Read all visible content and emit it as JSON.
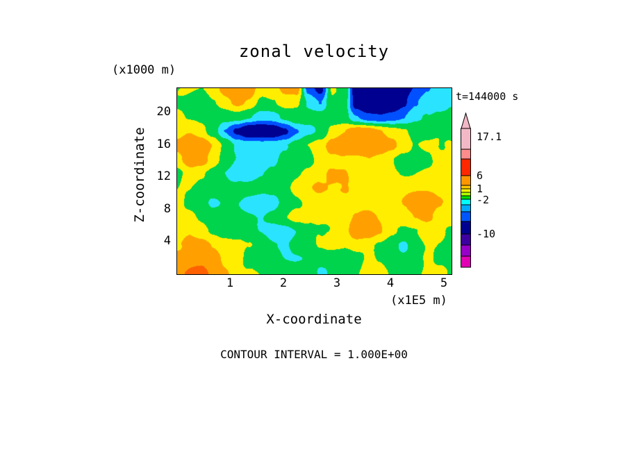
{
  "chart_data": {
    "type": "heatmap",
    "title": "zonal velocity",
    "time_label": "t=144000 s",
    "xlabel": "X-coordinate",
    "x_units": "(x1E5 m)",
    "ylabel": "Z-coordinate",
    "y_units": "(x1000 m)",
    "contour_note": "CONTOUR INTERVAL = 1.000E+00",
    "contour_interval": 1.0,
    "field_max": 17.1,
    "x_ticks": [
      1,
      2,
      3,
      4,
      5
    ],
    "y_ticks": [
      4,
      8,
      12,
      16,
      20
    ],
    "x_range": [
      0,
      5.13
    ],
    "z_range": [
      0,
      23
    ],
    "legend_position": "right",
    "color_bins": [
      {
        "max": -7,
        "color": "#000090"
      },
      {
        "max": -4,
        "color": "#0050ff"
      },
      {
        "max": -1.5,
        "color": "#2ae4ff"
      },
      {
        "max": 1.5,
        "color": "#00d44c"
      },
      {
        "max": 4,
        "color": "#ffee00"
      },
      {
        "max": 8,
        "color": "#ffa000"
      },
      {
        "max": 999,
        "color": "#ff6000"
      }
    ],
    "grid": {
      "description": "estimated zonal velocity values, rows top (z=23) to bottom (z=0), cols left (x=0) to right (x=5.13)",
      "values": [
        [
          1,
          1,
          1,
          3,
          5,
          7,
          5,
          2,
          3,
          5,
          5,
          -6,
          -9,
          2,
          1,
          -10,
          -12,
          -12,
          -11,
          -9,
          -7,
          -5,
          -3,
          -2
        ],
        [
          1,
          1,
          0,
          2,
          3,
          4,
          3,
          1,
          2,
          3,
          2,
          -2,
          -4,
          1,
          0,
          -9,
          -11,
          -11,
          -10,
          -8,
          -5,
          -3,
          -2,
          -1
        ],
        [
          2,
          1,
          1,
          1,
          0,
          0,
          -1,
          -2,
          -2,
          -1,
          0,
          0,
          1,
          1,
          0,
          -4,
          -6,
          -6,
          -5,
          -4,
          -2,
          -1,
          0,
          0
        ],
        [
          2,
          3,
          2,
          0,
          -4,
          -8,
          -11,
          -11,
          -10,
          -8,
          -5,
          -3,
          -1,
          3,
          4,
          5,
          5,
          4,
          3,
          2,
          0,
          0,
          1,
          1
        ],
        [
          5,
          7,
          6,
          4,
          1,
          -2,
          -3,
          -3,
          -2,
          -1,
          0,
          1,
          2,
          5,
          7,
          7,
          7,
          6,
          5,
          3,
          1,
          1,
          1,
          2
        ],
        [
          4,
          6,
          5,
          3,
          1,
          -1,
          -3,
          -3,
          -2,
          0,
          1,
          1,
          2,
          3,
          4,
          4,
          4,
          3,
          2,
          1,
          1,
          1,
          2,
          2
        ],
        [
          1,
          2,
          1,
          0,
          -1,
          -2,
          -3,
          -2,
          -1,
          0,
          1,
          2,
          3,
          5,
          5,
          3,
          2,
          2,
          2,
          2,
          2,
          2,
          2,
          3
        ],
        [
          1,
          1,
          0,
          0,
          -1,
          -1,
          -1,
          -1,
          0,
          1,
          2,
          3,
          4,
          4,
          4,
          3,
          3,
          2,
          2,
          3,
          3,
          3,
          3,
          3
        ],
        [
          2,
          1,
          0,
          -1,
          -1,
          -2,
          -3,
          -3,
          -2,
          0,
          1,
          2,
          3,
          3,
          3,
          3,
          3,
          3,
          3,
          4,
          5,
          6,
          5,
          4
        ],
        [
          2,
          2,
          1,
          0,
          0,
          -1,
          -1,
          -1,
          0,
          1,
          2,
          2,
          3,
          3,
          3,
          4,
          5,
          4,
          3,
          3,
          4,
          5,
          4,
          3
        ],
        [
          2,
          3,
          2,
          1,
          0,
          0,
          -1,
          -2,
          -3,
          -3,
          -2,
          0,
          1,
          2,
          3,
          5,
          5,
          4,
          2,
          1,
          1,
          2,
          2,
          1
        ],
        [
          4,
          5,
          5,
          4,
          3,
          2,
          1,
          0,
          -1,
          -1,
          0,
          0,
          1,
          2,
          2,
          3,
          2,
          1,
          0,
          -2,
          0,
          1,
          1,
          1
        ],
        [
          6,
          7,
          7,
          6,
          4,
          3,
          1,
          0,
          0,
          -1,
          -1,
          -1,
          -1,
          -1,
          0,
          1,
          2,
          1,
          0,
          0,
          1,
          2,
          1,
          1
        ],
        [
          7,
          8,
          8,
          7,
          5,
          3,
          2,
          1,
          0,
          0,
          -1,
          -1,
          -2,
          -1,
          0,
          1,
          2,
          2,
          1,
          1,
          1,
          2,
          2,
          1
        ]
      ]
    },
    "colorbar": {
      "segments": [
        {
          "color": "#f2b8c6",
          "h": 30
        },
        {
          "color": "#ff8c8c",
          "h": 14
        },
        {
          "color": "#ff2800",
          "h": 24
        },
        {
          "color": "#ff9600",
          "h": 14
        },
        {
          "color": "#ffc800",
          "h": 5
        },
        {
          "color": "#ffff00",
          "h": 5
        },
        {
          "color": "#b4ff00",
          "h": 5
        },
        {
          "color": "#00dc00",
          "h": 5
        },
        {
          "color": "#00ffff",
          "h": 8
        },
        {
          "color": "#00aaff",
          "h": 10
        },
        {
          "color": "#0055ff",
          "h": 14
        },
        {
          "color": "#000090",
          "h": 18
        },
        {
          "color": "#3c00a0",
          "h": 16
        },
        {
          "color": "#9600c8",
          "h": 16
        },
        {
          "color": "#e100b4",
          "h": 16
        }
      ],
      "labels": [
        {
          "text": "17.1",
          "offset": 12
        },
        {
          "text": "6",
          "offset": 68
        },
        {
          "text": "1",
          "offset": 87
        },
        {
          "text": "-2",
          "offset": 103
        },
        {
          "text": "-10",
          "offset": 152
        }
      ]
    }
  }
}
